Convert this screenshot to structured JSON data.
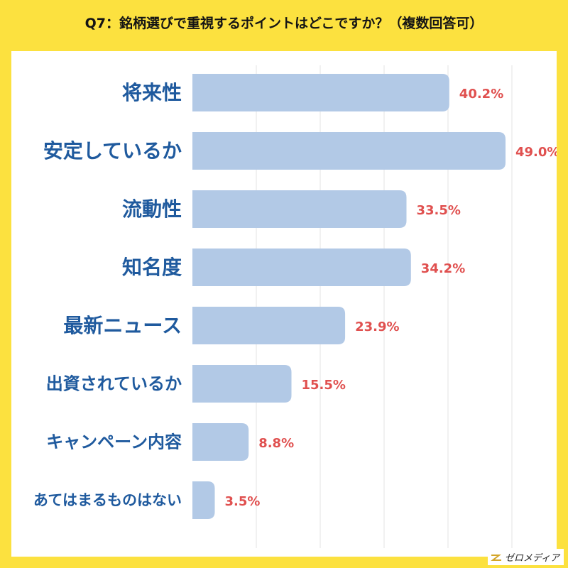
{
  "chart_data": {
    "type": "bar",
    "orientation": "horizontal",
    "title": "Q7：銘柄選びで重視するポイントはどこですか？（複数回答可）",
    "categories": [
      "将来性",
      "安定しているか",
      "流動性",
      "知名度",
      "最新ニュース",
      "出資されているか",
      "キャンペーン内容",
      "あてはまるものはない"
    ],
    "values": [
      40.2,
      49.0,
      33.5,
      34.2,
      23.9,
      15.5,
      8.8,
      3.5
    ],
    "value_labels": [
      "40.2%",
      "49.0%",
      "33.5%",
      "34.2%",
      "23.9%",
      "15.5%",
      "8.8%",
      "3.5%"
    ],
    "value_unit": "%",
    "xlim": [
      0,
      50
    ],
    "gridlines": [
      10,
      20,
      30,
      40,
      50
    ],
    "colors": {
      "bar": "#B2C9E6",
      "category_label": "#1F5A9E",
      "value_label": "#E0504F",
      "grid": "#E3E3E3",
      "background": "#FCE13F",
      "panel": "#FFFFFF"
    }
  },
  "watermark": {
    "text": "ゼロメディア"
  }
}
